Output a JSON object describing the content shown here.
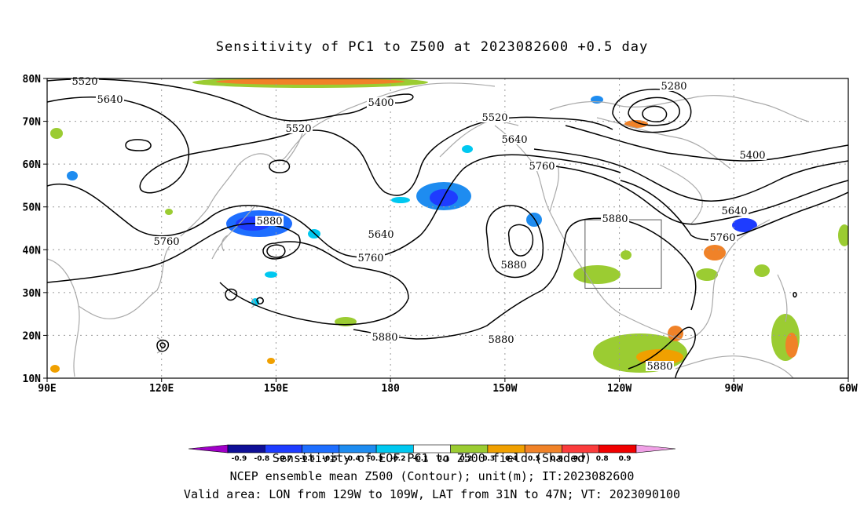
{
  "title": "Sensitivity of PC1 to Z500 at 2023082600 +0.5 day",
  "captions": {
    "line1": "Sensitivity of EOF PC1 to Z500 field (Shaded)",
    "line2": "NCEP ensemble mean Z500 (Contour); unit(m); IT:2023082600",
    "line3": "Valid area: LON from 129W to 109W, LAT from 31N to 47N; VT: 2023090100"
  },
  "map": {
    "lon_range": [
      90,
      300
    ],
    "lat_range": [
      10,
      80
    ],
    "lat_ticks": [
      "10N",
      "20N",
      "30N",
      "40N",
      "50N",
      "60N",
      "70N",
      "80N"
    ],
    "lon_ticks": [
      "90E",
      "120E",
      "150E",
      "180",
      "150W",
      "120W",
      "90W",
      "60W"
    ],
    "grid": true,
    "valid_area_box": {
      "lon_min": -129,
      "lon_max": -109,
      "lat_min": 31,
      "lat_max": 47
    },
    "contour_labels": [
      "5520",
      "5640",
      "5400",
      "5520",
      "5520",
      "5640",
      "5760",
      "5280",
      "5400",
      "5640",
      "5760",
      "5880",
      "5640",
      "5760",
      "5760",
      "5880",
      "5880",
      "5880",
      "5880",
      "5880"
    ],
    "colors": {
      "contour": "#000000",
      "coast": "#a9a9a9",
      "grid": "#9a9a9a"
    }
  },
  "colorbar": {
    "ticks": [
      "-0.9",
      "-0.8",
      "-0.7",
      "-0.6",
      "-0.5",
      "-0.4",
      "-0.3",
      "-0.2",
      "-0.1",
      "0.1",
      "0.2",
      "0.3",
      "0.4",
      "0.5",
      "0.6",
      "0.7",
      "0.8",
      "0.9"
    ],
    "colors": [
      "#a000c8",
      "#0f0f96",
      "#1e3cff",
      "#1e6eff",
      "#1e8cf0",
      "#00c8f0",
      "#ffffff",
      "#9bcc32",
      "#f0a000",
      "#f08228",
      "#fa3c3c",
      "#f00000",
      "#f0a0e6"
    ]
  }
}
